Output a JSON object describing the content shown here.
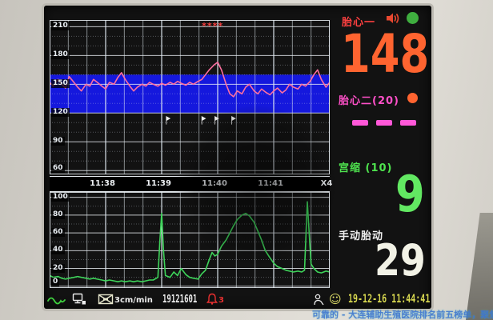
{
  "window": {
    "type": "fetal-monitor-screen"
  },
  "vitals": {
    "fhr1": {
      "label": "胎心一",
      "value": "148",
      "label_color": "#ff4040",
      "value_color": "#ff6430",
      "status_dot_color": "#3fae3f"
    },
    "fhr2": {
      "label": "胎心二(20)",
      "value": "---",
      "label_color": "#ff50c8",
      "status_dot_color": "#ff6430",
      "dash_color": "#ff58d8"
    },
    "toco": {
      "label": "宫缩 (10)",
      "value": "9",
      "label_color": "#4ee24e",
      "value_color": "#62e862"
    },
    "fetal_movement": {
      "label": "手动胎动",
      "value": "29",
      "label_color": "#f0f0f0",
      "value_color": "#f2f2e6"
    }
  },
  "statusbar": {
    "paper_speed": "3cm/min",
    "record_id": "19121601",
    "alarm_count": "3",
    "datetime": "19-12-16 11:44:41",
    "icons": [
      "sine-wave",
      "transducer",
      "paper-out",
      "alarm-bell",
      "patient",
      "smiley"
    ]
  },
  "watermark": "可靠的 - 大连辅助生殖医院排名前五榜单，聚焦试管婴",
  "chart_data": [
    {
      "type": "line",
      "name": "fetal-heart-rate",
      "ylabel": "FHR (bpm)",
      "ylim": [
        56,
        217
      ],
      "yticks": [
        210,
        180,
        150,
        120,
        90,
        60
      ],
      "normal_band": [
        120,
        160
      ],
      "band_color": "#1518dd",
      "x_seconds_range": [
        0,
        300
      ],
      "x_labels": [
        {
          "t": 60,
          "text": "11:38"
        },
        {
          "t": 120,
          "text": "11:39"
        },
        {
          "t": 180,
          "text": "11:40"
        },
        {
          "t": 240,
          "text": "11:41"
        },
        {
          "t": 300,
          "text": "X4"
        }
      ],
      "event_marks_sec": [
        125,
        163,
        177,
        195
      ],
      "annotation": {
        "t": 175,
        "text": "****",
        "color": "#ff4040"
      },
      "series": [
        {
          "name": "FHR1",
          "color": "#ff6fa0",
          "points": [
            [
              0,
              152
            ],
            [
              4,
              148
            ],
            [
              9,
              155
            ],
            [
              13,
              150
            ],
            [
              17,
              146
            ],
            [
              21,
              158
            ],
            [
              26,
              152
            ],
            [
              30,
              147
            ],
            [
              34,
              143
            ],
            [
              39,
              150
            ],
            [
              43,
              148
            ],
            [
              47,
              155
            ],
            [
              51,
              152
            ],
            [
              56,
              148
            ],
            [
              60,
              145
            ],
            [
              64,
              152
            ],
            [
              69,
              150
            ],
            [
              73,
              157
            ],
            [
              77,
              162
            ],
            [
              81,
              155
            ],
            [
              86,
              148
            ],
            [
              90,
              143
            ],
            [
              94,
              147
            ],
            [
              99,
              150
            ],
            [
              103,
              148
            ],
            [
              107,
              152
            ],
            [
              111,
              150
            ],
            [
              116,
              148
            ],
            [
              120,
              151
            ],
            [
              124,
              149
            ],
            [
              129,
              152
            ],
            [
              133,
              150
            ],
            [
              137,
              153
            ],
            [
              141,
              151
            ],
            [
              146,
              149
            ],
            [
              150,
              152
            ],
            [
              154,
              150
            ],
            [
              159,
              153
            ],
            [
              163,
              155
            ],
            [
              167,
              160
            ],
            [
              171,
              165
            ],
            [
              176,
              170
            ],
            [
              180,
              173
            ],
            [
              184,
              165
            ],
            [
              189,
              150
            ],
            [
              193,
              140
            ],
            [
              197,
              137
            ],
            [
              201,
              143
            ],
            [
              206,
              140
            ],
            [
              210,
              147
            ],
            [
              214,
              150
            ],
            [
              219,
              143
            ],
            [
              223,
              140
            ],
            [
              227,
              145
            ],
            [
              231,
              142
            ],
            [
              236,
              139
            ],
            [
              240,
              143
            ],
            [
              244,
              146
            ],
            [
              249,
              141
            ],
            [
              253,
              144
            ],
            [
              257,
              150
            ],
            [
              261,
              147
            ],
            [
              266,
              145
            ],
            [
              270,
              150
            ],
            [
              274,
              148
            ],
            [
              279,
              153
            ],
            [
              283,
              160
            ],
            [
              287,
              165
            ],
            [
              291,
              155
            ],
            [
              296,
              147
            ],
            [
              300,
              152
            ]
          ]
        }
      ]
    },
    {
      "type": "line",
      "name": "toco-contractions",
      "ylabel": "TOCO",
      "ylim": [
        -2,
        106
      ],
      "yticks": [
        100,
        80,
        60,
        40,
        20,
        0
      ],
      "x_seconds_range": [
        0,
        300
      ],
      "series": [
        {
          "name": "TOCO",
          "color": "#3ed45a",
          "points": [
            [
              0,
              12
            ],
            [
              4,
              10
            ],
            [
              9,
              11
            ],
            [
              13,
              9
            ],
            [
              17,
              8
            ],
            [
              21,
              9
            ],
            [
              26,
              10
            ],
            [
              30,
              11
            ],
            [
              34,
              10
            ],
            [
              39,
              9
            ],
            [
              43,
              8
            ],
            [
              47,
              9
            ],
            [
              51,
              8
            ],
            [
              56,
              7
            ],
            [
              60,
              6
            ],
            [
              64,
              7
            ],
            [
              69,
              6
            ],
            [
              73,
              5
            ],
            [
              77,
              6
            ],
            [
              81,
              5
            ],
            [
              86,
              6
            ],
            [
              90,
              5
            ],
            [
              94,
              6
            ],
            [
              99,
              5
            ],
            [
              103,
              6
            ],
            [
              107,
              7
            ],
            [
              111,
              7
            ],
            [
              116,
              10
            ],
            [
              118,
              50
            ],
            [
              120,
              82
            ],
            [
              122,
              40
            ],
            [
              124,
              12
            ],
            [
              129,
              10
            ],
            [
              133,
              16
            ],
            [
              137,
              12
            ],
            [
              141,
              20
            ],
            [
              146,
              13
            ],
            [
              150,
              10
            ],
            [
              154,
              9
            ],
            [
              159,
              8
            ],
            [
              163,
              14
            ],
            [
              167,
              18
            ],
            [
              171,
              30
            ],
            [
              174,
              38
            ],
            [
              177,
              34
            ],
            [
              180,
              36
            ],
            [
              184,
              45
            ],
            [
              189,
              52
            ],
            [
              193,
              60
            ],
            [
              197,
              68
            ],
            [
              201,
              75
            ],
            [
              206,
              80
            ],
            [
              210,
              82
            ],
            [
              214,
              79
            ],
            [
              219,
              72
            ],
            [
              223,
              62
            ],
            [
              227,
              52
            ],
            [
              231,
              40
            ],
            [
              236,
              32
            ],
            [
              240,
              26
            ],
            [
              244,
              22
            ],
            [
              249,
              20
            ],
            [
              253,
              18
            ],
            [
              257,
              17
            ],
            [
              261,
              16
            ],
            [
              266,
              17
            ],
            [
              270,
              16
            ],
            [
              273,
              18
            ],
            [
              276,
              95
            ],
            [
              278,
              60
            ],
            [
              280,
              25
            ],
            [
              283,
              20
            ],
            [
              287,
              16
            ],
            [
              291,
              15
            ],
            [
              296,
              17
            ],
            [
              300,
              16
            ]
          ]
        }
      ]
    }
  ]
}
